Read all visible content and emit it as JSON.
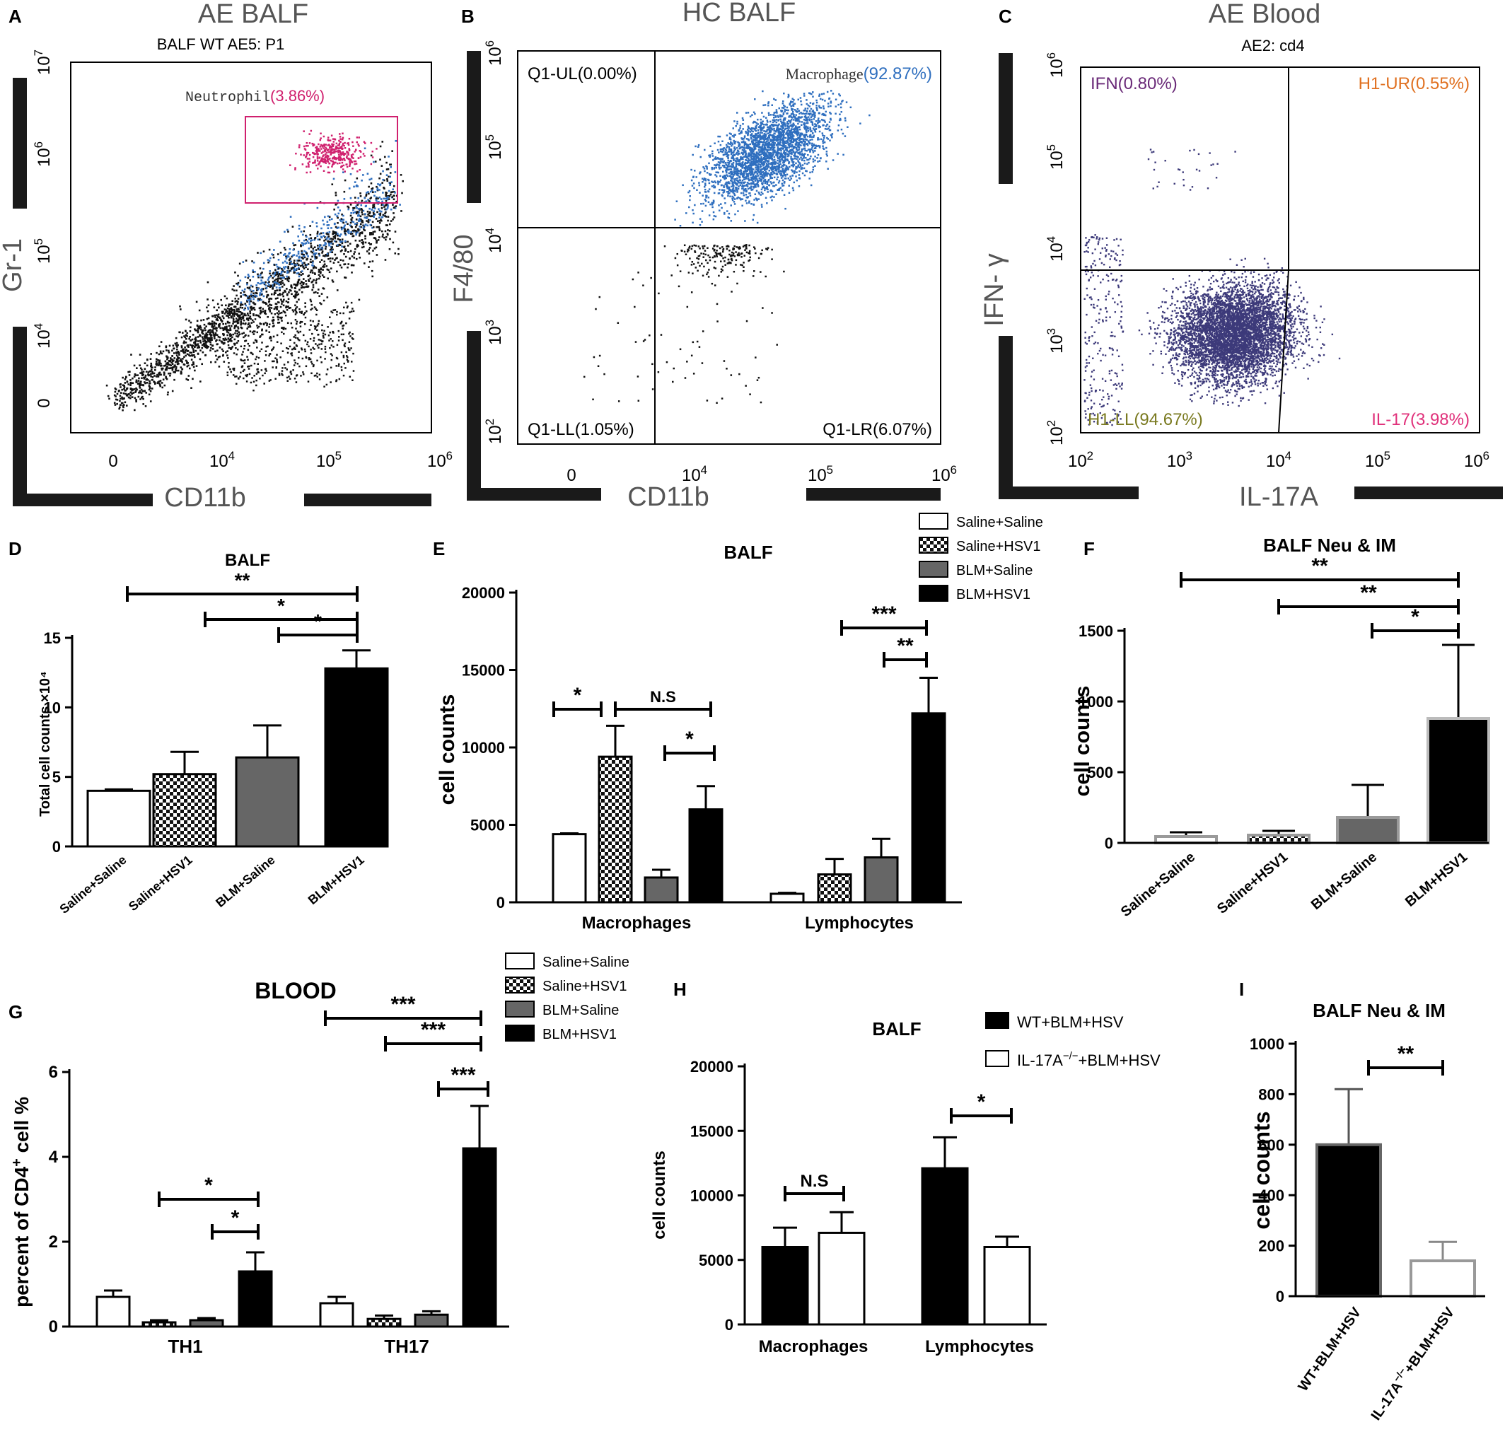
{
  "figure": {
    "panels": {
      "A": {
        "letter": "A",
        "header": "AE   BALF",
        "subtitle": "BALF WT AE5: P1"
      },
      "B": {
        "letter": "B",
        "header": "HC  BALF"
      },
      "C": {
        "letter": "C",
        "header": "AE  Blood",
        "subtitle": "AE2: cd4"
      },
      "D": {
        "letter": "D"
      },
      "E": {
        "letter": "E"
      },
      "F": {
        "letter": "F"
      },
      "G": {
        "letter": "G"
      },
      "H": {
        "letter": "H"
      },
      "I": {
        "letter": "I"
      }
    }
  },
  "colors": {
    "black": "#000000",
    "dark_gray": "#5f5f5f",
    "blue_dots": "#2f6fbf",
    "pink_dots": "#d0206e",
    "purple_dots": "#3d3a7a",
    "purple_label": "#6a2a78",
    "orange_label": "#e07020",
    "olive_label": "#7a7a20",
    "pink_label": "#e0307a"
  },
  "chart_data": [
    {
      "id": "A",
      "type": "scatter",
      "title": "BALF WT AE5: P1",
      "xlabel": "CD11b",
      "ylabel": "Gr-1",
      "xscale": "biexponential",
      "yscale": "biexponential",
      "x_ticks": [
        "0",
        "10^4",
        "10^5",
        "10^6"
      ],
      "y_ticks": [
        "0",
        "10^4",
        "10^5",
        "10^6",
        "10^7"
      ],
      "gates": [
        {
          "name": "Neutrophil",
          "percent": "(3.86%)"
        }
      ],
      "populations": [
        "events",
        "Neutrophil gate",
        "granulocyte diagonal (blue)"
      ]
    },
    {
      "id": "B",
      "type": "scatter",
      "xlabel": "CD11b",
      "ylabel": "F4/80",
      "x_ticks": [
        "0",
        "10^4",
        "10^5",
        "10^6"
      ],
      "y_ticks": [
        "10^2",
        "10^3",
        "10^4",
        "10^5",
        "10^6"
      ],
      "quadrants": [
        {
          "name": "Q1-UL",
          "label": "Q1-UL(0.00%)",
          "percent": 0.0
        },
        {
          "name": "Macrophage",
          "label_name": "Macrophage",
          "label_value": "(92.87%)",
          "percent": 92.87
        },
        {
          "name": "Q1-LL",
          "label": "Q1-LL(1.05%)",
          "percent": 1.05
        },
        {
          "name": "Q1-LR",
          "label": "Q1-LR(6.07%)",
          "percent": 6.07
        }
      ]
    },
    {
      "id": "C",
      "type": "scatter",
      "title": "AE2: cd4",
      "xlabel": "IL-17A",
      "ylabel": "IFN- γ",
      "x_ticks": [
        "10^2",
        "10^3",
        "10^4",
        "10^5",
        "10^6"
      ],
      "y_ticks": [
        "10^2",
        "10^3",
        "10^4",
        "10^5",
        "10^6"
      ],
      "quadrants": [
        {
          "name": "IFN",
          "label": "IFN(0.80%)",
          "percent": 0.8
        },
        {
          "name": "H1-UR",
          "label": "H1-UR(0.55%)",
          "percent": 0.55
        },
        {
          "name": "H1-LL",
          "label": "H1-LL(94.67%)",
          "percent": 94.67
        },
        {
          "name": "IL-17",
          "label": "IL-17(3.98%)",
          "percent": 3.98
        }
      ]
    },
    {
      "id": "D",
      "type": "bar",
      "title": "BALF",
      "ylabel": "Total cell counts ×10^4",
      "ylim": [
        0,
        15
      ],
      "yticks": [
        "0",
        "5",
        "10",
        "15"
      ],
      "categories": [
        "Saline+Saline",
        "Saline+HSV1",
        "BLM+Saline",
        "BLM+HSV1"
      ],
      "values": [
        4.0,
        5.2,
        6.4,
        12.8
      ],
      "errors": [
        0.1,
        1.6,
        2.3,
        1.3
      ],
      "significance": [
        {
          "from": 0,
          "to": 3,
          "label": "**"
        },
        {
          "from": 1,
          "to": 3,
          "label": "*"
        },
        {
          "from": 2,
          "to": 3,
          "label": "*"
        }
      ]
    },
    {
      "id": "E",
      "type": "bar",
      "title": "BALF",
      "ylabel": "cell counts",
      "ylim": [
        0,
        20000
      ],
      "yticks": [
        "0",
        "5000",
        "10000",
        "15000",
        "20000"
      ],
      "categories": [
        "Macrophages",
        "Lymphocytes"
      ],
      "legend": [
        "Saline+Saline",
        "Saline+HSV1",
        "BLM+Saline",
        "BLM+HSV1"
      ],
      "series": [
        {
          "name": "Saline+Saline",
          "values": [
            4400,
            550
          ],
          "errors": [
            50,
            60
          ]
        },
        {
          "name": "Saline+HSV1",
          "values": [
            9400,
            1800
          ],
          "errors": [
            2000,
            1000
          ]
        },
        {
          "name": "BLM+Saline",
          "values": [
            1600,
            2900
          ],
          "errors": [
            500,
            1200
          ]
        },
        {
          "name": "BLM+HSV1",
          "values": [
            6000,
            12200
          ],
          "errors": [
            1500,
            2300
          ]
        }
      ],
      "significance": [
        {
          "group": 0,
          "from": 0,
          "to": 1,
          "label": "*"
        },
        {
          "group": 0,
          "from": 1,
          "to": 3,
          "label": "N.S"
        },
        {
          "group": 0,
          "from": 2,
          "to": 3,
          "label": "*"
        },
        {
          "group": 1,
          "from": 1,
          "to": 3,
          "label": "***"
        },
        {
          "group": 1,
          "from": 2,
          "to": 3,
          "label": "**"
        }
      ]
    },
    {
      "id": "F",
      "type": "bar",
      "title": "BALF Neu & IM",
      "ylabel": "cell counts",
      "ylim": [
        0,
        1500
      ],
      "yticks": [
        "0",
        "500",
        "1000",
        "1500"
      ],
      "categories": [
        "Saline+Saline",
        "Saline+HSV1",
        "BLM+Saline",
        "BLM+HSV1"
      ],
      "values": [
        45,
        55,
        180,
        880
      ],
      "errors": [
        30,
        30,
        230,
        520
      ],
      "significance": [
        {
          "from": 0,
          "to": 3,
          "label": "**"
        },
        {
          "from": 1,
          "to": 3,
          "label": "**"
        },
        {
          "from": 2,
          "to": 3,
          "label": "*"
        }
      ]
    },
    {
      "id": "G",
      "type": "bar",
      "title": "BLOOD",
      "ylabel": "percent of CD4+ cell %",
      "ylim": [
        0,
        6
      ],
      "yticks": [
        "0",
        "2",
        "4",
        "6"
      ],
      "categories": [
        "TH1",
        "TH17"
      ],
      "legend": [
        "Saline+Saline",
        "Saline+HSV1",
        "BLM+Saline",
        "BLM+HSV1"
      ],
      "series": [
        {
          "name": "Saline+Saline",
          "values": [
            0.7,
            0.55
          ],
          "errors": [
            0.15,
            0.15
          ]
        },
        {
          "name": "Saline+HSV1",
          "values": [
            0.1,
            0.18
          ],
          "errors": [
            0.05,
            0.08
          ]
        },
        {
          "name": "BLM+Saline",
          "values": [
            0.15,
            0.28
          ],
          "errors": [
            0.05,
            0.08
          ]
        },
        {
          "name": "BLM+HSV1",
          "values": [
            1.3,
            4.2
          ],
          "errors": [
            0.45,
            1.0
          ]
        }
      ],
      "significance": [
        {
          "group": 0,
          "from": 0,
          "to": 3,
          "label": "*"
        },
        {
          "group": 0,
          "from": 2,
          "to": 3,
          "label": "*"
        },
        {
          "group": 1,
          "from": 0,
          "to": 3,
          "label": "***"
        },
        {
          "group": 1,
          "from": 1,
          "to": 3,
          "label": "***"
        },
        {
          "group": 1,
          "from": 2,
          "to": 3,
          "label": "***"
        }
      ]
    },
    {
      "id": "H",
      "type": "bar",
      "title": "BALF",
      "ylabel": "cell counts",
      "ylim": [
        0,
        20000
      ],
      "yticks": [
        "0",
        "5000",
        "10000",
        "15000",
        "20000"
      ],
      "categories": [
        "Macrophages",
        "Lymphocytes"
      ],
      "legend": [
        "WT+BLM+HSV",
        "IL-17A−/−+BLM+HSV"
      ],
      "series": [
        {
          "name": "WT+BLM+HSV",
          "values": [
            6000,
            12100
          ],
          "errors": [
            1500,
            2400
          ]
        },
        {
          "name": "IL-17A−/−+BLM+HSV",
          "values": [
            7100,
            6000
          ],
          "errors": [
            1600,
            800
          ]
        }
      ],
      "significance": [
        {
          "group": 0,
          "from": 0,
          "to": 1,
          "label": "N.S"
        },
        {
          "group": 1,
          "from": 0,
          "to": 1,
          "label": "*"
        }
      ]
    },
    {
      "id": "I",
      "type": "bar",
      "title": "BALF Neu & IM",
      "ylabel": "cell counts",
      "ylim": [
        0,
        1000
      ],
      "yticks": [
        "0",
        "200",
        "400",
        "600",
        "800",
        "1000"
      ],
      "categories": [
        "WT+BLM+HSV",
        "IL-17A−/−+BLM+HSV"
      ],
      "values": [
        600,
        140
      ],
      "errors": [
        220,
        75
      ],
      "significance": [
        {
          "from": 0,
          "to": 1,
          "label": "**"
        }
      ]
    }
  ]
}
